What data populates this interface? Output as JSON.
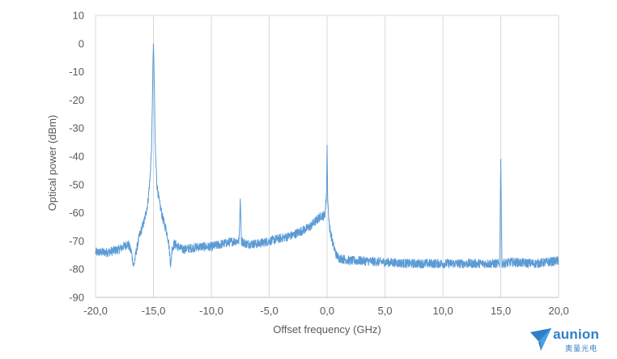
{
  "chart_data": {
    "type": "line",
    "title": "",
    "xlabel": "Offset frequency (GHz)",
    "ylabel": "Optical power (dBm)",
    "xlim": [
      -20,
      20
    ],
    "ylim": [
      -90,
      10
    ],
    "xticks": [
      -20,
      -15,
      -10,
      -5,
      0,
      5,
      10,
      15,
      20
    ],
    "xtick_labels": [
      "-20,0",
      "-15,0",
      "-10,0",
      "-5,0",
      "0,0",
      "5,0",
      "10,0",
      "15,0",
      "20,0"
    ],
    "yticks": [
      -90,
      -80,
      -70,
      -60,
      -50,
      -40,
      -30,
      -20,
      -10,
      0,
      10
    ],
    "ytick_labels": [
      "-90",
      "-80",
      "-70",
      "-60",
      "-50",
      "-40",
      "-30",
      "-20",
      "-10",
      "0",
      "10"
    ],
    "grid": "vertical",
    "line_color": "#5b9bd5",
    "series": [
      {
        "x": [
          -20,
          -19,
          -18,
          -17.2,
          -16.9,
          -16.7,
          -16.5,
          -16.2,
          -15.8,
          -15.5,
          -15.3,
          -15.15,
          -15.05,
          -15.0,
          -14.95,
          -14.85,
          -14.7,
          -14.5,
          -14.2,
          -13.9,
          -13.7,
          -13.5,
          -13.4,
          -13.2,
          -12.5,
          -11,
          -10,
          -9,
          -8,
          -7.6,
          -7.5,
          -7.4,
          -7,
          -6,
          -5,
          -4,
          -3,
          -2,
          -1.5,
          -1,
          -0.5,
          -0.2,
          -0.05,
          0.0,
          0.05,
          0.2,
          0.5,
          0.8,
          1,
          2,
          3,
          5,
          7,
          10,
          12,
          14.9,
          15.0,
          15.1,
          16,
          18,
          20
        ],
        "y": [
          -74,
          -74,
          -73,
          -71,
          -74,
          -79,
          -74,
          -68,
          -63,
          -57,
          -48,
          -36,
          -8,
          0,
          -8,
          -36,
          -50,
          -56,
          -62,
          -66,
          -70,
          -79,
          -73,
          -71,
          -73,
          -72,
          -72,
          -71,
          -70,
          -70,
          -55,
          -70,
          -71,
          -71,
          -70,
          -69,
          -68,
          -66,
          -65,
          -63,
          -61,
          -61,
          -53,
          -36,
          -55,
          -65,
          -71,
          -75,
          -76,
          -77,
          -77,
          -77.5,
          -78,
          -78,
          -78,
          -78,
          -41,
          -78,
          -77.5,
          -78,
          -77
        ]
      }
    ]
  },
  "logo": {
    "name": "aunion",
    "sub": "奥量光电"
  }
}
